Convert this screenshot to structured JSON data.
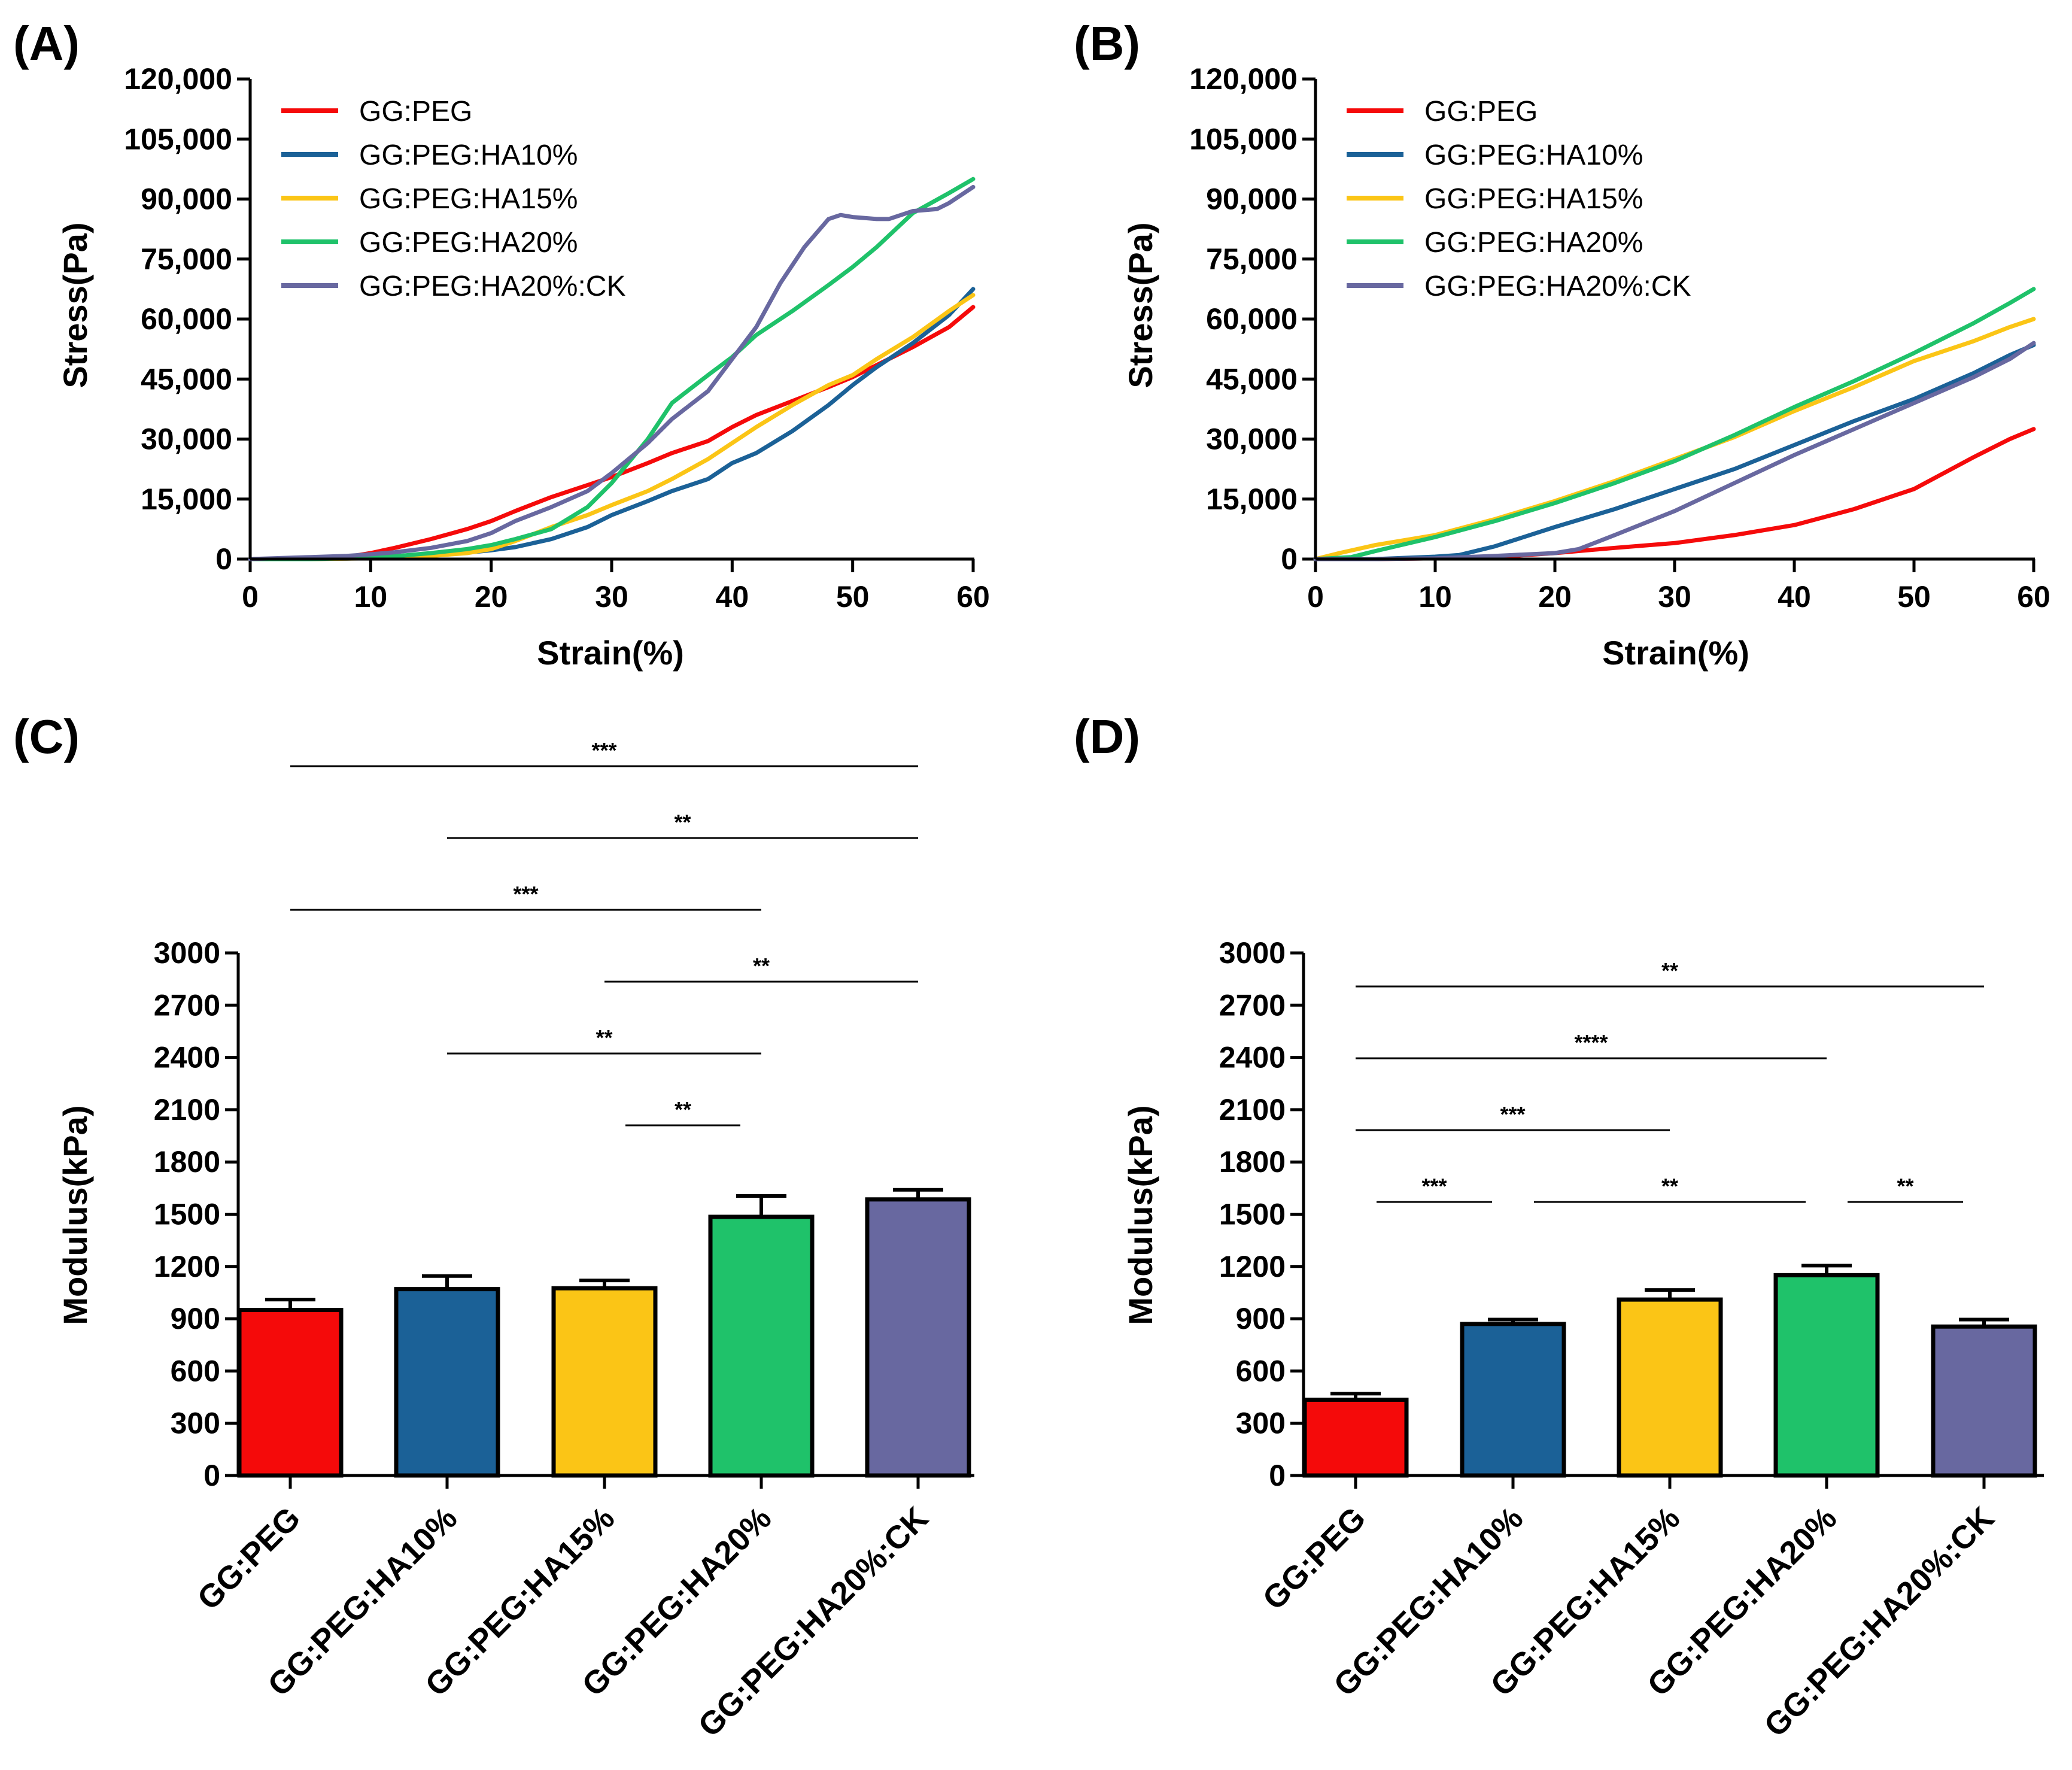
{
  "colors": {
    "GG:PEG": "#f50a0a",
    "GG:PEG:HA10%": "#1b6197",
    "GG:PEG:HA15%": "#fbc516",
    "GG:PEG:HA20%": "#1fc26a",
    "GG:PEG:HA20%:CK": "#6868a0"
  },
  "chart_data": [
    {
      "panel": "(A)",
      "type": "line",
      "xlabel": "Strain(%)",
      "ylabel": "Stress(Pa)",
      "xlim": [
        0,
        60
      ],
      "ylim": [
        0,
        120000
      ],
      "xticks": [
        "0",
        "10",
        "20",
        "30",
        "40",
        "50",
        "60"
      ],
      "yticks": [
        "0",
        "15,000",
        "30,000",
        "45,000",
        "60,000",
        "75,000",
        "90,000",
        "105,000",
        "120,000"
      ],
      "legend_position": "top-left",
      "series": [
        {
          "name": "GG:PEG",
          "x": [
            0,
            5,
            8,
            10,
            12,
            15,
            18,
            20,
            22,
            25,
            28,
            30,
            33,
            35,
            38,
            40,
            42,
            45,
            48,
            50,
            52,
            55,
            58,
            60
          ],
          "y": [
            0,
            0,
            500,
            1500,
            2800,
            5000,
            7500,
            9500,
            12000,
            15500,
            18500,
            20500,
            24000,
            26500,
            29500,
            33000,
            36000,
            39500,
            43000,
            45500,
            48500,
            53000,
            58000,
            63000
          ]
        },
        {
          "name": "GG:PEG:HA10%",
          "x": [
            0,
            5,
            8,
            10,
            12,
            15,
            18,
            20,
            22,
            25,
            28,
            30,
            33,
            35,
            38,
            40,
            42,
            45,
            48,
            50,
            52,
            55,
            58,
            60
          ],
          "y": [
            0,
            0,
            100,
            300,
            500,
            1000,
            1600,
            2200,
            3000,
            5000,
            8000,
            11000,
            14500,
            17000,
            20000,
            24000,
            26500,
            32000,
            38500,
            43500,
            48000,
            54000,
            61000,
            67500
          ]
        },
        {
          "name": "GG:PEG:HA15%",
          "x": [
            0,
            5,
            8,
            10,
            12,
            15,
            18,
            20,
            22,
            25,
            28,
            30,
            33,
            35,
            38,
            40,
            42,
            45,
            48,
            50,
            52,
            55,
            58,
            60
          ],
          "y": [
            0,
            0,
            100,
            200,
            400,
            800,
            1500,
            2500,
            4500,
            8000,
            11000,
            13500,
            17000,
            20000,
            25000,
            29000,
            33000,
            38500,
            43500,
            46000,
            50000,
            55500,
            62000,
            66000
          ]
        },
        {
          "name": "GG:PEG:HA20%",
          "x": [
            0,
            5,
            8,
            10,
            12,
            15,
            18,
            20,
            22,
            25,
            28,
            30,
            33,
            35,
            38,
            40,
            42,
            45,
            48,
            50,
            52,
            55,
            58,
            60
          ],
          "y": [
            0,
            0,
            200,
            400,
            700,
            1500,
            2500,
            3500,
            5000,
            7500,
            13000,
            19000,
            30000,
            39000,
            46000,
            50500,
            56000,
            62000,
            68500,
            73000,
            78000,
            86500,
            91500,
            95000
          ]
        },
        {
          "name": "GG:PEG:HA20%:CK",
          "x": [
            0,
            5,
            8,
            10,
            12,
            15,
            18,
            20,
            22,
            25,
            28,
            30,
            33,
            35,
            38,
            40,
            42,
            44,
            46,
            48,
            49,
            50,
            52,
            53,
            55,
            57,
            58,
            60
          ],
          "y": [
            0,
            500,
            800,
            1200,
            1700,
            2800,
            4500,
            6500,
            9500,
            13000,
            17000,
            21500,
            29000,
            35000,
            42000,
            50000,
            58000,
            69000,
            78000,
            85000,
            86000,
            85500,
            85000,
            85000,
            87000,
            87500,
            89000,
            93000
          ]
        }
      ]
    },
    {
      "panel": "(B)",
      "type": "line",
      "xlabel": "Strain(%)",
      "ylabel": "Stress(Pa)",
      "xlim": [
        0,
        60
      ],
      "ylim": [
        0,
        120000
      ],
      "xticks": [
        "0",
        "10",
        "20",
        "30",
        "40",
        "50",
        "60"
      ],
      "yticks": [
        "0",
        "15,000",
        "30,000",
        "45,000",
        "60,000",
        "75,000",
        "90,000",
        "105,000",
        "120,000"
      ],
      "legend_position": "top-left",
      "series": [
        {
          "name": "GG:PEG",
          "x": [
            0,
            5,
            10,
            15,
            20,
            25,
            30,
            35,
            40,
            45,
            50,
            55,
            58,
            60
          ],
          "y": [
            0,
            0,
            200,
            500,
            1500,
            2800,
            4000,
            6000,
            8500,
            12500,
            17500,
            25500,
            30000,
            32500
          ]
        },
        {
          "name": "GG:PEG:HA10%",
          "x": [
            0,
            5,
            10,
            12,
            15,
            20,
            25,
            30,
            35,
            40,
            45,
            50,
            55,
            58,
            60
          ],
          "y": [
            0,
            0,
            600,
            1000,
            3200,
            8000,
            12500,
            17500,
            22500,
            28500,
            34500,
            40000,
            46500,
            51000,
            53500
          ]
        },
        {
          "name": "GG:PEG:HA15%",
          "x": [
            0,
            2,
            5,
            10,
            15,
            20,
            25,
            30,
            35,
            40,
            45,
            50,
            55,
            58,
            60
          ],
          "y": [
            0,
            1500,
            3500,
            6000,
            10000,
            14500,
            19500,
            25000,
            30500,
            37000,
            43000,
            49500,
            54500,
            58000,
            60000
          ]
        },
        {
          "name": "GG:PEG:HA20%",
          "x": [
            0,
            3,
            5,
            10,
            15,
            20,
            25,
            30,
            35,
            40,
            45,
            50,
            55,
            58,
            60
          ],
          "y": [
            0,
            500,
            2000,
            5500,
            9500,
            14000,
            19000,
            24500,
            31000,
            38000,
            44500,
            51500,
            59000,
            64000,
            67500
          ]
        },
        {
          "name": "GG:PEG:HA20%:CK",
          "x": [
            0,
            5,
            10,
            15,
            20,
            22,
            25,
            30,
            35,
            40,
            45,
            50,
            55,
            58,
            60
          ],
          "y": [
            0,
            0,
            200,
            800,
            1500,
            2500,
            6000,
            12000,
            19000,
            26000,
            32500,
            39000,
            45500,
            50000,
            54000
          ]
        }
      ]
    },
    {
      "panel": "(C)",
      "type": "bar",
      "ylabel": "Modulus(kPa)",
      "ylim": [
        0,
        3000
      ],
      "yticks": [
        "0",
        "300",
        "600",
        "900",
        "1200",
        "1500",
        "1800",
        "2100",
        "2400",
        "2700",
        "3000"
      ],
      "categories": [
        "GG:PEG",
        "GG:PEG:HA10%",
        "GG:PEG:HA15%",
        "GG:PEG:HA20%",
        "GG:PEG:HA20%:CK"
      ],
      "values": [
        950,
        1070,
        1075,
        1485,
        1585
      ],
      "errors": [
        60,
        75,
        45,
        120,
        55
      ],
      "significance": [
        {
          "from": 0,
          "to": 4,
          "label": "***"
        },
        {
          "from": 1,
          "to": 4,
          "label": "**"
        },
        {
          "from": 0,
          "to": 3,
          "label": "***"
        },
        {
          "from": 2,
          "to": 4,
          "label": "**"
        },
        {
          "from": 1,
          "to": 3,
          "label": "**"
        },
        {
          "from": 2,
          "to": 3,
          "label": "**"
        }
      ]
    },
    {
      "panel": "(D)",
      "type": "bar",
      "ylabel": "Modulus(kPa)",
      "ylim": [
        0,
        3000
      ],
      "yticks": [
        "0",
        "300",
        "600",
        "900",
        "1200",
        "1500",
        "1800",
        "2100",
        "2400",
        "2700",
        "3000"
      ],
      "categories": [
        "GG:PEG",
        "GG:PEG:HA10%",
        "GG:PEG:HA15%",
        "GG:PEG:HA20%",
        "GG:PEG:HA20%:CK"
      ],
      "values": [
        435,
        870,
        1010,
        1150,
        855
      ],
      "errors": [
        35,
        25,
        55,
        55,
        40
      ],
      "significance": [
        {
          "from": 0,
          "to": 4,
          "label": "**"
        },
        {
          "from": 0,
          "to": 3,
          "label": "****"
        },
        {
          "from": 0,
          "to": 2,
          "label": "***"
        },
        {
          "from": 0,
          "to": 1,
          "label": "***"
        },
        {
          "from": 1,
          "to": 3,
          "label": "**"
        },
        {
          "from": 3,
          "to": 4,
          "label": "**"
        }
      ]
    }
  ]
}
